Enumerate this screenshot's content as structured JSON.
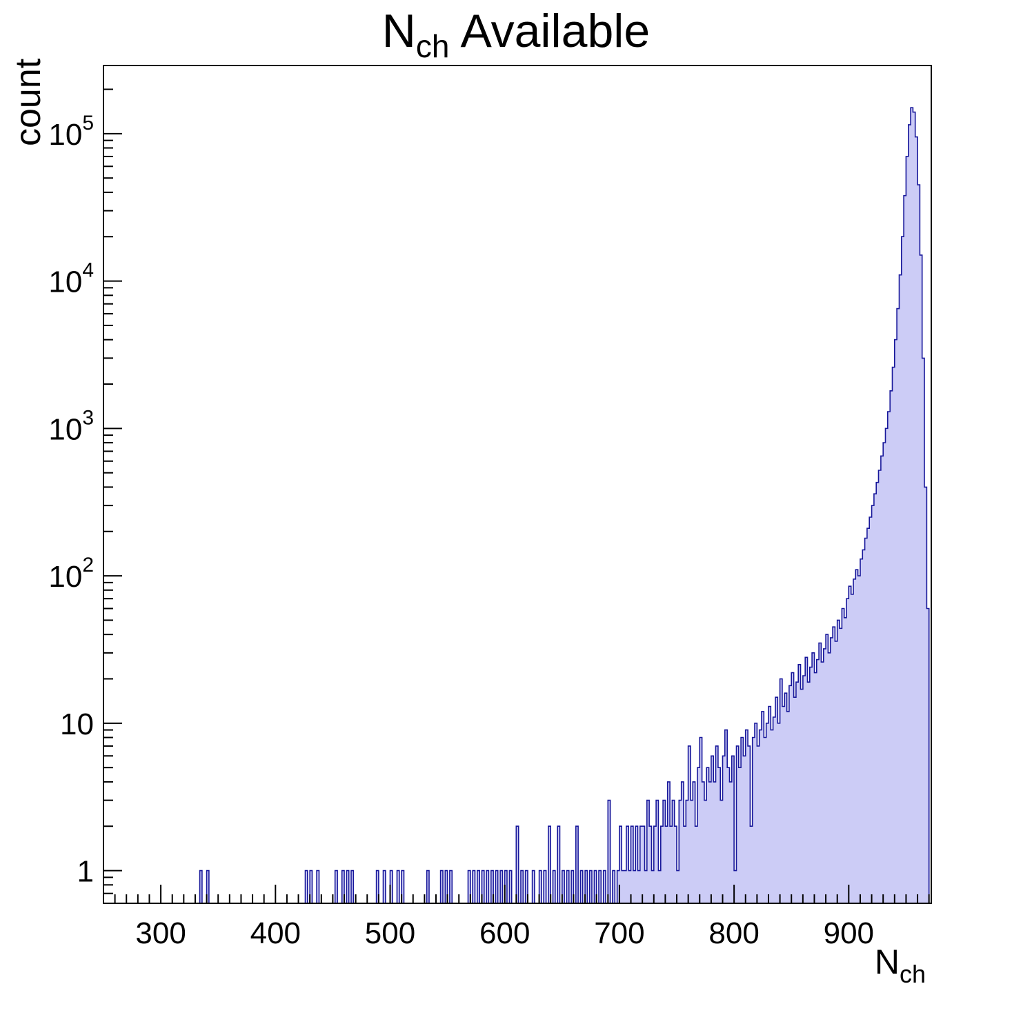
{
  "chart_data": {
    "type": "histogram",
    "title_main": "N",
    "title_sub": "ch",
    "title_rest": "Available",
    "xlabel_main": "N",
    "xlabel_sub": "ch",
    "ylabel": "count",
    "xlim": [
      250,
      972
    ],
    "ylim": [
      0.6,
      290000
    ],
    "ylog": true,
    "bin_width": 2,
    "x_major_ticks": [
      300,
      400,
      500,
      600,
      700,
      800,
      900
    ],
    "x_minor_step": 10,
    "y_major_ticks": [
      {
        "value": 1,
        "base": "1",
        "exp": ""
      },
      {
        "value": 10,
        "base": "10",
        "exp": ""
      },
      {
        "value": 100,
        "base": "10",
        "exp": "2"
      },
      {
        "value": 1000,
        "base": "10",
        "exp": "3"
      },
      {
        "value": 10000,
        "base": "10",
        "exp": "4"
      },
      {
        "value": 100000,
        "base": "10",
        "exp": "5"
      }
    ],
    "colors": {
      "fill": "#ccccf6",
      "line": "#17179a",
      "axis": "#000000",
      "text": "#000000",
      "background": "#ffffff"
    },
    "peak": {
      "x": 954,
      "count": 150000
    },
    "sparse_bins": [
      [
        334,
        1
      ],
      [
        340,
        1
      ],
      [
        426,
        1
      ],
      [
        430,
        1
      ],
      [
        436,
        1
      ],
      [
        452,
        1
      ],
      [
        458,
        1
      ],
      [
        462,
        1
      ],
      [
        466,
        1
      ],
      [
        488,
        1
      ],
      [
        494,
        1
      ],
      [
        500,
        1
      ],
      [
        506,
        1
      ],
      [
        510,
        1
      ],
      [
        532,
        1
      ],
      [
        544,
        1
      ],
      [
        548,
        1
      ],
      [
        552,
        1
      ],
      [
        568,
        1
      ],
      [
        572,
        1
      ],
      [
        576,
        1
      ],
      [
        580,
        1
      ],
      [
        584,
        1
      ],
      [
        588,
        1
      ],
      [
        592,
        1
      ],
      [
        596,
        1
      ],
      [
        600,
        1
      ],
      [
        604,
        1
      ],
      [
        610,
        2
      ],
      [
        614,
        1
      ],
      [
        618,
        1
      ],
      [
        624,
        1
      ],
      [
        630,
        1
      ],
      [
        634,
        1
      ],
      [
        638,
        2
      ],
      [
        642,
        1
      ],
      [
        646,
        2
      ],
      [
        650,
        1
      ],
      [
        654,
        1
      ],
      [
        658,
        1
      ],
      [
        662,
        2
      ],
      [
        666,
        1
      ],
      [
        670,
        1
      ],
      [
        674,
        1
      ],
      [
        678,
        1
      ],
      [
        682,
        1
      ],
      [
        686,
        1
      ],
      [
        690,
        3
      ],
      [
        694,
        1
      ],
      [
        698,
        1
      ]
    ],
    "dense_bins": {
      "start": 700,
      "step": 2,
      "counts": [
        2,
        1,
        1,
        2,
        1,
        2,
        1,
        2,
        1,
        2,
        2,
        1,
        3,
        2,
        1,
        2,
        3,
        1,
        2,
        3,
        2,
        4,
        2,
        3,
        2,
        1,
        3,
        4,
        2,
        3,
        7,
        3,
        4,
        2,
        5,
        8,
        4,
        3,
        5,
        4,
        6,
        4,
        7,
        5,
        3,
        6,
        9,
        5,
        4,
        6,
        1,
        7,
        5,
        8,
        6,
        9,
        7,
        2,
        8,
        10,
        7,
        9,
        12,
        8,
        10,
        13,
        9,
        11,
        15,
        10,
        20,
        13,
        16,
        12,
        18,
        22,
        15,
        19,
        25,
        17,
        21,
        28,
        19,
        24,
        30,
        22,
        27,
        35,
        26,
        32,
        40,
        30,
        38,
        45,
        36,
        50,
        44,
        60,
        52,
        70,
        85,
        75,
        95,
        110,
        100,
        130,
        150,
        180,
        210,
        250,
        300,
        360,
        430,
        520,
        650,
        800,
        1000,
        1300,
        1800,
        2600,
        4000,
        6500,
        11000,
        20000,
        38000,
        70000,
        115000,
        150000,
        140000,
        95000,
        45000,
        15000,
        3000,
        400,
        60
      ]
    }
  }
}
